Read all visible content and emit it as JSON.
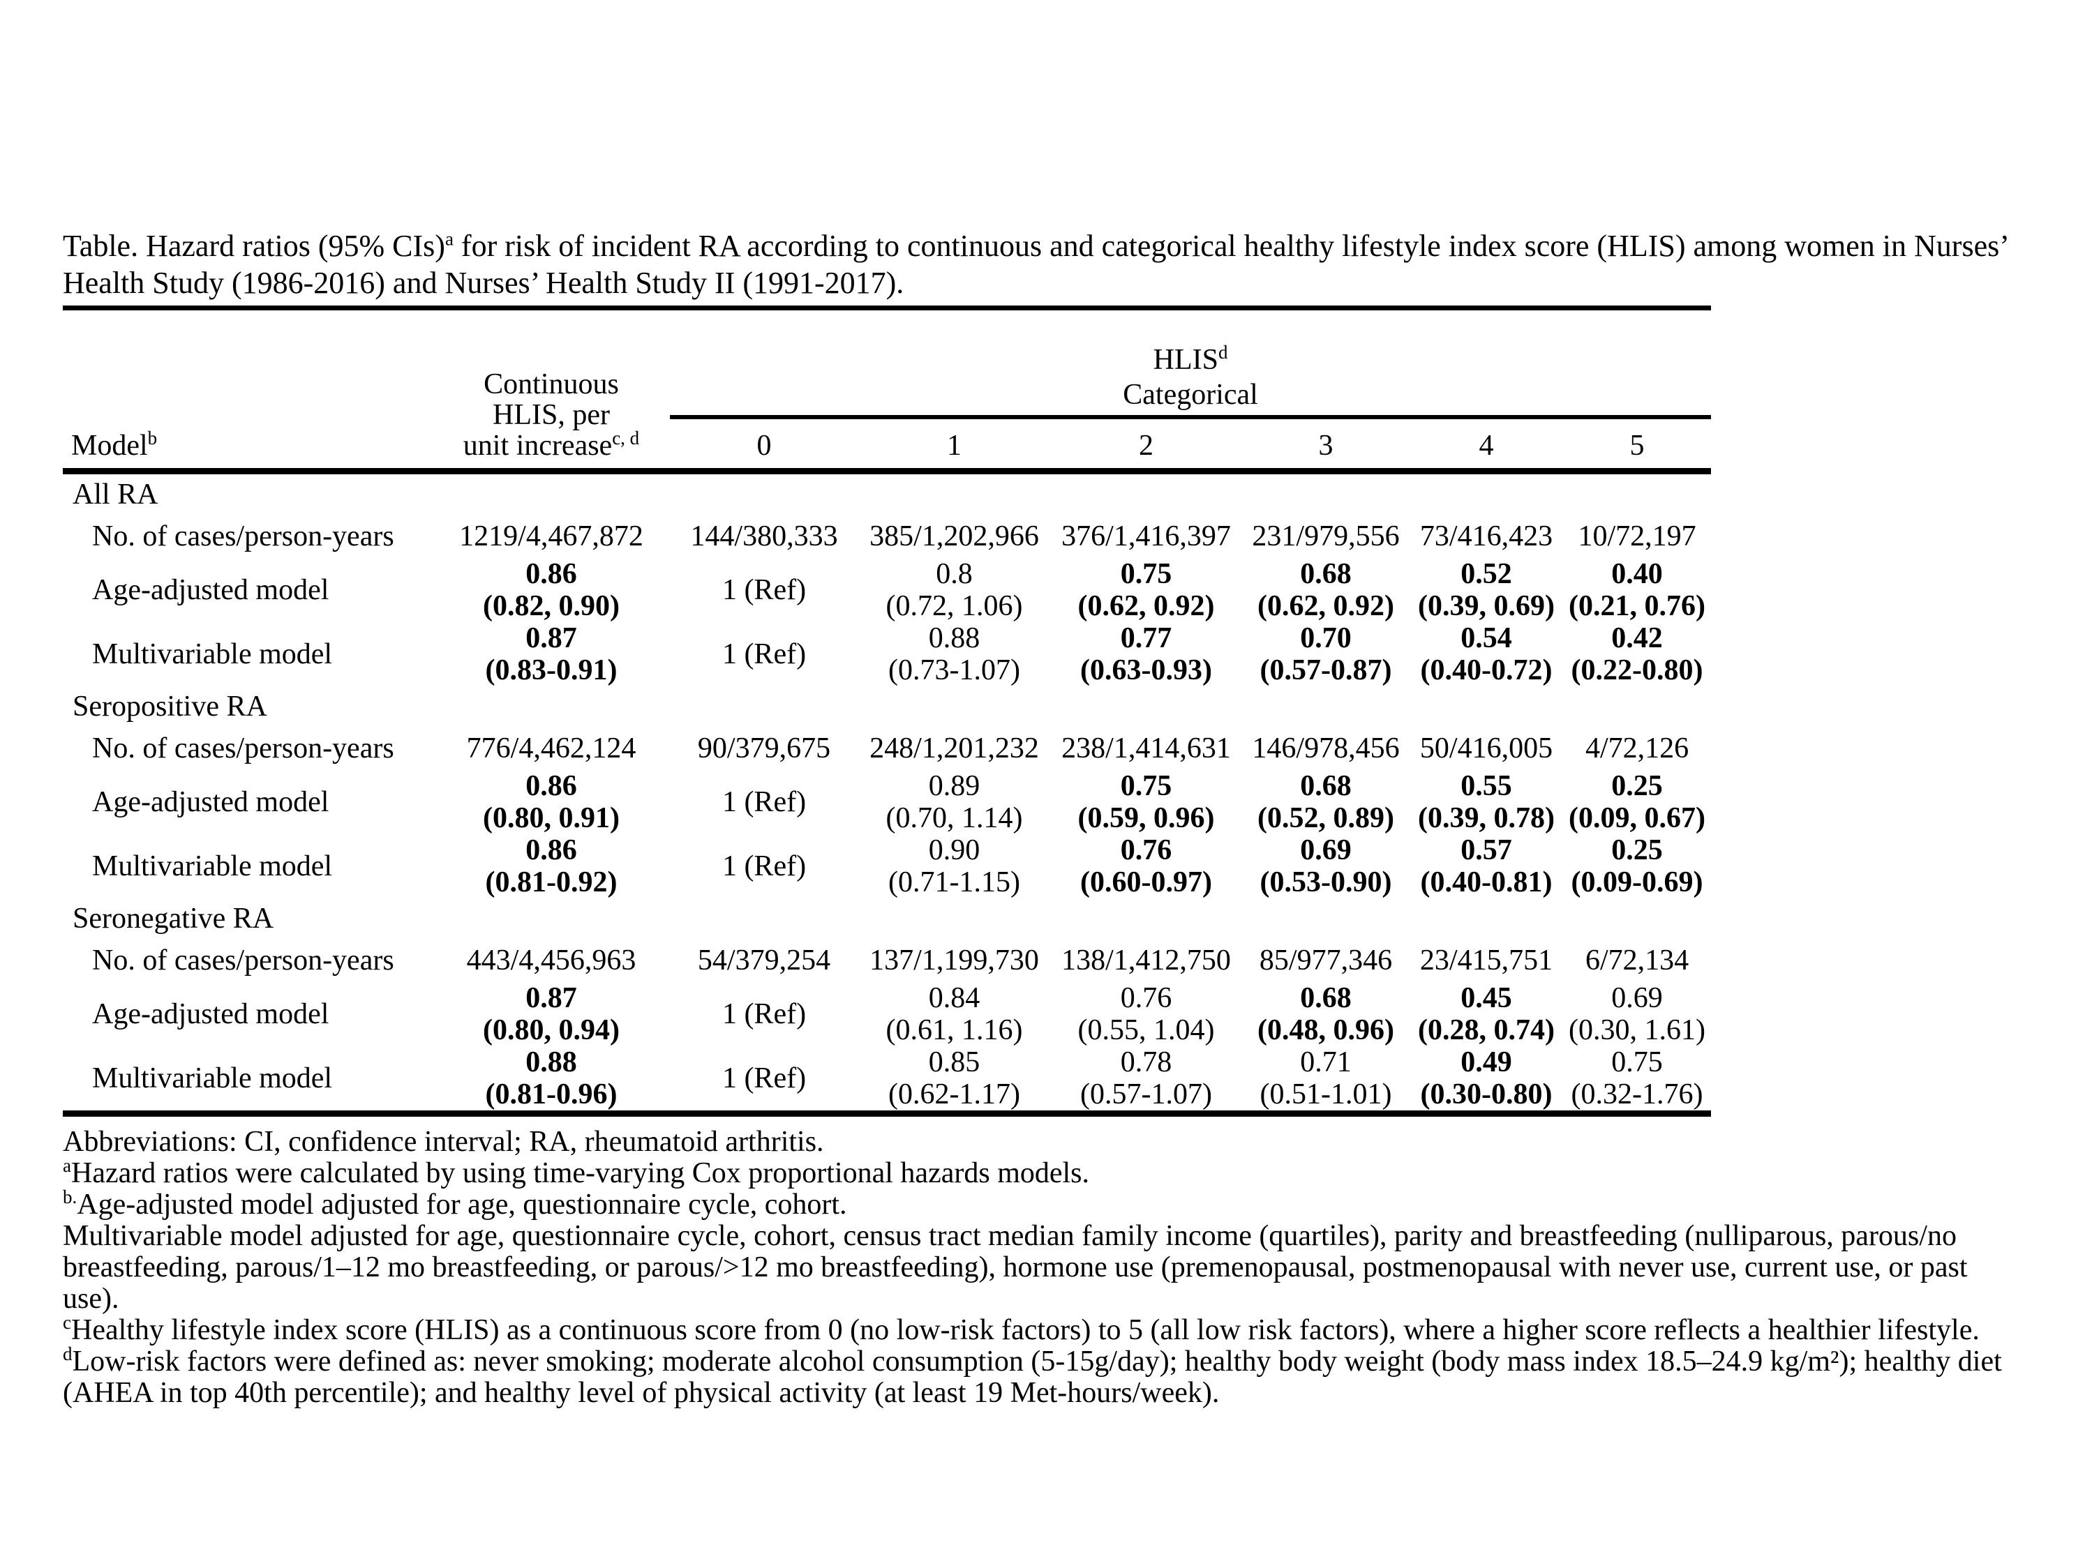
{
  "title": {
    "part1": "Table. Hazard ratios (95% CIs)",
    "sup": "a",
    "part2": " for risk of incident RA according to continuous and categorical healthy lifestyle index score (HLIS) among women in Nurses’ Health Study (1986-2016) and Nurses’ Health Study II (1991-2017)."
  },
  "table": {
    "model_header": {
      "text": "Model",
      "sup": "b"
    },
    "continuous_header": {
      "lines": [
        "Continuous",
        "HLIS, per",
        "unit increase"
      ],
      "sup": "c, d"
    },
    "hlis_header": {
      "text": "HLIS",
      "sup": "d",
      "subtext": "Categorical"
    },
    "category_labels": [
      "0",
      "1",
      "2",
      "3",
      "4",
      "5"
    ],
    "cases_row_label": "No. of cases/person-years",
    "sections": [
      {
        "name": "All RA",
        "cases": [
          "1219/4,467,872",
          "144/380,333",
          "385/1,202,966",
          "376/1,416,397",
          "231/979,556",
          "73/416,423",
          "10/72,197"
        ],
        "model_rows": [
          {
            "label": "Age-adjusted model",
            "cells": [
              {
                "hr": "0.86",
                "ci": "(0.82, 0.90)",
                "bold": true
              },
              {
                "hr": "1 (Ref)",
                "ci": "",
                "bold": false
              },
              {
                "hr": "0.8",
                "ci": "(0.72, 1.06)",
                "bold": false
              },
              {
                "hr": "0.75",
                "ci": "(0.62, 0.92)",
                "bold": true
              },
              {
                "hr": "0.68",
                "ci": "(0.62, 0.92)",
                "bold": true
              },
              {
                "hr": "0.52",
                "ci": "(0.39, 0.69)",
                "bold": true
              },
              {
                "hr": "0.40",
                "ci": "(0.21, 0.76)",
                "bold": true
              }
            ]
          },
          {
            "label": "Multivariable model",
            "cells": [
              {
                "hr": "0.87",
                "ci": "(0.83-0.91)",
                "bold": true
              },
              {
                "hr": "1 (Ref)",
                "ci": "",
                "bold": false
              },
              {
                "hr": "0.88",
                "ci": "(0.73-1.07)",
                "bold": false
              },
              {
                "hr": "0.77",
                "ci": "(0.63-0.93)",
                "bold": true
              },
              {
                "hr": "0.70",
                "ci": "(0.57-0.87)",
                "bold": true
              },
              {
                "hr": "0.54",
                "ci": "(0.40-0.72)",
                "bold": true
              },
              {
                "hr": "0.42",
                "ci": "(0.22-0.80)",
                "bold": true
              }
            ]
          }
        ]
      },
      {
        "name": "Seropositive RA",
        "cases": [
          "776/4,462,124",
          "90/379,675",
          "248/1,201,232",
          "238/1,414,631",
          "146/978,456",
          "50/416,005",
          "4/72,126"
        ],
        "model_rows": [
          {
            "label": "Age-adjusted model",
            "cells": [
              {
                "hr": "0.86",
                "ci": "(0.80, 0.91)",
                "bold": true
              },
              {
                "hr": "1 (Ref)",
                "ci": "",
                "bold": false
              },
              {
                "hr": "0.89",
                "ci": "(0.70, 1.14)",
                "bold": false
              },
              {
                "hr": "0.75",
                "ci": "(0.59, 0.96)",
                "bold": true
              },
              {
                "hr": "0.68",
                "ci": "(0.52, 0.89)",
                "bold": true
              },
              {
                "hr": "0.55",
                "ci": "(0.39, 0.78)",
                "bold": true
              },
              {
                "hr": "0.25",
                "ci": "(0.09, 0.67)",
                "bold": true
              }
            ]
          },
          {
            "label": "Multivariable model",
            "cells": [
              {
                "hr": "0.86",
                "ci": "(0.81-0.92)",
                "bold": true
              },
              {
                "hr": "1 (Ref)",
                "ci": "",
                "bold": false
              },
              {
                "hr": "0.90",
                "ci": "(0.71-1.15)",
                "bold": false
              },
              {
                "hr": "0.76",
                "ci": "(0.60-0.97)",
                "bold": true
              },
              {
                "hr": "0.69",
                "ci": "(0.53-0.90)",
                "bold": true
              },
              {
                "hr": "0.57",
                "ci": "(0.40-0.81)",
                "bold": true
              },
              {
                "hr": "0.25",
                "ci": "(0.09-0.69)",
                "bold": true
              }
            ]
          }
        ]
      },
      {
        "name": "Seronegative RA",
        "cases": [
          "443/4,456,963",
          "54/379,254",
          "137/1,199,730",
          "138/1,412,750",
          "85/977,346",
          "23/415,751",
          "6/72,134"
        ],
        "model_rows": [
          {
            "label": "Age-adjusted model",
            "cells": [
              {
                "hr": "0.87",
                "ci": "(0.80, 0.94)",
                "bold": true
              },
              {
                "hr": "1 (Ref)",
                "ci": "",
                "bold": false
              },
              {
                "hr": "0.84",
                "ci": "(0.61, 1.16)",
                "bold": false
              },
              {
                "hr": "0.76",
                "ci": "(0.55, 1.04)",
                "bold": false
              },
              {
                "hr": "0.68",
                "ci": "(0.48, 0.96)",
                "bold": true
              },
              {
                "hr": "0.45",
                "ci": "(0.28, 0.74)",
                "bold": true
              },
              {
                "hr": "0.69",
                "ci": "(0.30, 1.61)",
                "bold": false
              }
            ]
          },
          {
            "label": "Multivariable model",
            "cells": [
              {
                "hr": "0.88",
                "ci": "(0.81-0.96)",
                "bold": true
              },
              {
                "hr": "1 (Ref)",
                "ci": "",
                "bold": false
              },
              {
                "hr": "0.85",
                "ci": "(0.62-1.17)",
                "bold": false
              },
              {
                "hr": "0.78",
                "ci": "(0.57-1.07)",
                "bold": false
              },
              {
                "hr": "0.71",
                "ci": "(0.51-1.01)",
                "bold": false
              },
              {
                "hr": "0.49",
                "ci": "(0.30-0.80)",
                "bold": true
              },
              {
                "hr": "0.75",
                "ci": "(0.32-1.76)",
                "bold": false
              }
            ]
          }
        ]
      }
    ]
  },
  "footnotes": [
    {
      "sup": "",
      "text": "Abbreviations: CI, confidence interval; RA, rheumatoid arthritis."
    },
    {
      "sup": "a",
      "text": "Hazard ratios were calculated by using time-varying Cox proportional hazards models."
    },
    {
      "sup": "b.",
      "text": "Age-adjusted model adjusted for age, questionnaire cycle, cohort."
    },
    {
      "sup": "",
      "text": "Multivariable model adjusted for age, questionnaire cycle, cohort, census tract median family income (quartiles), parity and breastfeeding (nulliparous, parous/no breastfeeding, parous/1–12 mo breastfeeding, or parous/>12 mo breastfeeding), hormone use (premenopausal, postmenopausal with never use, current use, or past use)."
    },
    {
      "sup": "c",
      "text": "Healthy lifestyle index score (HLIS) as a continuous score from 0 (no low-risk factors) to 5 (all low risk factors), where a higher score reflects a healthier lifestyle."
    },
    {
      "sup": "d",
      "text": "Low-risk factors were defined as: never smoking; moderate alcohol consumption (5-15g/day); healthy body weight (body mass index 18.5–24.9 kg/m²); healthy diet (AHEA in top 40th percentile); and healthy level of physical activity (at least 19 Met-hours/week)."
    }
  ]
}
